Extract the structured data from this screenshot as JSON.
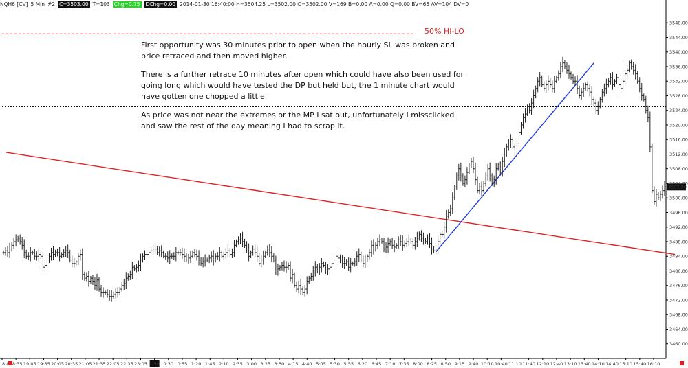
{
  "header": {
    "symbol": "NQH6 [CV]",
    "interval": "5 Min",
    "num": "#2",
    "close_box": "C=3503.00",
    "trades": "T=103",
    "chg_box": "Chg=0.75",
    "dchg_box": "DChg=0.00",
    "ohlc": "2014-01-30 16:40:00 H=3504.25 L=3502.00 O=3502.00 V=169 B=0.00 A=0.00 Q=0.00 BV=65 AV=104 DV=0"
  },
  "annotations": {
    "hilo_label": "50% HI-LO",
    "para1": "First opportunity was 30 minutes prior to open when the hourly SL was broken and price retraced and then moved higher.",
    "para2": "There is a further retrace 10 minutes after open which could have also been used for going long which would have tested the DP but held but, the 1 minute chart would have gotten one chopped a little.",
    "para3": "As price was not near the extremes or the MP I sat out, unfortunately I missclicked and saw the rest of the day meaning I had to scrap it."
  },
  "colors": {
    "hilo_line": "#e02020",
    "trend_red": "#e02020",
    "trend_blue": "#1f3ddb",
    "dotted_black": "#111111",
    "bars": "#222222",
    "last_price_box": "#111111"
  },
  "chart_data": {
    "type": "ohlc_bar",
    "ylim": [
      3456,
      3552
    ],
    "y_ticks": [
      "3548.00",
      "3544.00",
      "3540.00",
      "3536.00",
      "3532.00",
      "3528.00",
      "3524.00",
      "3520.00",
      "3516.00",
      "3512.00",
      "3508.00",
      "3504.00",
      "3500.00",
      "3496.00",
      "3492.00",
      "3488.00",
      "3484.00",
      "3480.00",
      "3476.00",
      "3472.00",
      "3468.00",
      "3464.00",
      "3460.00"
    ],
    "x_ticks": [
      "8:05",
      "18:35",
      "19:05",
      "19:35",
      "20:05",
      "20:35",
      "21:05",
      "21:35",
      "22:05",
      "22:35",
      "23:05",
      "1:30",
      "0:30",
      "0:55",
      "1:20",
      "1:45",
      "2:10",
      "2:35",
      "3:00",
      "3:25",
      "3:50",
      "4:15",
      "4:40",
      "5:05",
      "5:30",
      "5:55",
      "6:20",
      "6:45",
      "7:10",
      "7:35",
      "8:00",
      "8:25",
      "8:50",
      "9:15",
      "9:40",
      "10:10",
      "10:40",
      "11:10",
      "11:40",
      "12:10",
      "12:40",
      "13:10",
      "13:40",
      "14:10",
      "14:40",
      "15:10",
      "15:40",
      "16:10"
    ],
    "last_price_label": "3503.00",
    "levels": [
      {
        "name": "50% HI-LO",
        "value": 3545.0,
        "style": "dashed",
        "color": "#e02020"
      },
      {
        "name": "dotted",
        "value": 3525.0,
        "style": "dotted",
        "color": "#111111"
      }
    ],
    "trendlines": [
      {
        "color": "#e02020",
        "from_bar": 1,
        "from_price": 3512.5,
        "to_bar": 323,
        "to_price": 3484.5
      },
      {
        "color": "#1f3ddb",
        "from_bar": 208,
        "from_price": 3485.2,
        "to_bar": 284,
        "to_price": 3537.0
      }
    ],
    "closes": [
      3485,
      3485.5,
      3485,
      3486,
      3487,
      3488,
      3488.5,
      3489,
      3488,
      3487,
      3485,
      3484,
      3484,
      3485,
      3485,
      3484,
      3484,
      3484.5,
      3484,
      3481,
      3481.5,
      3483,
      3484,
      3485,
      3484.5,
      3485,
      3485,
      3484,
      3484.5,
      3485,
      3485.5,
      3485,
      3483,
      3482,
      3482,
      3482.5,
      3484,
      3484.5,
      3479,
      3478,
      3478.5,
      3477,
      3478,
      3477,
      3476,
      3477.5,
      3475,
      3474,
      3474,
      3474,
      3473.5,
      3473,
      3473,
      3473.5,
      3474,
      3474,
      3475,
      3476,
      3476.5,
      3478,
      3478.5,
      3479,
      3481,
      3480.5,
      3481,
      3481.5,
      3483,
      3484,
      3484.5,
      3484.5,
      3485,
      3485.5,
      3486,
      3486,
      3485,
      3485.5,
      3485,
      3484,
      3484,
      3483.5,
      3484,
      3484,
      3484,
      3485,
      3485,
      3485,
      3484.5,
      3484,
      3483,
      3483.5,
      3484,
      3485,
      3484.5,
      3484,
      3483,
      3482,
      3482.5,
      3483,
      3483,
      3483.5,
      3484,
      3483,
      3484,
      3484,
      3485,
      3484,
      3484.5,
      3485,
      3485.5,
      3484.5,
      3485,
      3487,
      3488,
      3488.5,
      3489,
      3488,
      3487,
      3486,
      3484,
      3485,
      3486,
      3485,
      3484,
      3482,
      3483,
      3484,
      3485,
      3486,
      3485,
      3484,
      3483,
      3480,
      3480.5,
      3481,
      3481.5,
      3481,
      3481,
      3481.5,
      3478,
      3479,
      3476,
      3475,
      3476,
      3475,
      3474,
      3475,
      3477,
      3478,
      3478.5,
      3480,
      3481,
      3480,
      3481,
      3482,
      3481.5,
      3480,
      3480.5,
      3481,
      3482,
      3483,
      3484,
      3483.5,
      3483,
      3482,
      3482,
      3482.5,
      3481,
      3482,
      3482,
      3482.5,
      3484,
      3484.5,
      3483,
      3482,
      3483,
      3484,
      3485,
      3487,
      3486,
      3487,
      3488,
      3488.5,
      3488,
      3486,
      3486.5,
      3487.5,
      3488,
      3487,
      3486.5,
      3487,
      3488.5,
      3488,
      3487,
      3487.5,
      3488,
      3488.5,
      3488,
      3487,
      3488,
      3489,
      3490,
      3489,
      3488.5,
      3488,
      3489,
      3487.5,
      3486,
      3485.5,
      3486,
      3488,
      3490,
      3490,
      3492,
      3495,
      3496,
      3497,
      3500,
      3503,
      3506,
      3508,
      3506,
      3504,
      3505,
      3507,
      3509,
      3510,
      3508,
      3505,
      3502,
      3503,
      3502,
      3504,
      3506,
      3508,
      3506,
      3504,
      3505,
      3508,
      3509,
      3507,
      3510,
      3512,
      3514,
      3515,
      3516,
      3514,
      3512,
      3515,
      3518,
      3520,
      3522,
      3523,
      3525,
      3524,
      3526,
      3528,
      3530,
      3532,
      3533,
      3531,
      3530,
      3531,
      3532,
      3531,
      3530,
      3532,
      3533,
      3534,
      3536,
      3537,
      3536,
      3535,
      3534,
      3533,
      3532,
      3532,
      3530,
      3528,
      3529,
      3530,
      3531,
      3530,
      3529,
      3527,
      3526,
      3524,
      3525,
      3527,
      3529,
      3530,
      3531,
      3532,
      3533,
      3531,
      3532,
      3533,
      3531,
      3530,
      3532,
      3534,
      3535,
      3537,
      3536,
      3535,
      3534,
      3532,
      3530,
      3528,
      3527,
      3524,
      3522,
      3514,
      3502,
      3499,
      3501,
      3500,
      3501,
      3502,
      3503
    ]
  }
}
